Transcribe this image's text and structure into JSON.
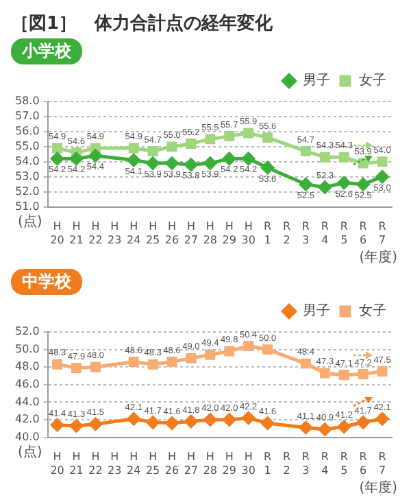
{
  "chart_data": [
    {
      "type": "line",
      "title": "［図1］　体力合計点の経年変化",
      "subtitle": "小学校",
      "xlabel": "(年度)",
      "ylabel": "(点)",
      "categories": [
        "H20",
        "H21",
        "H22",
        "H23",
        "H24",
        "H25",
        "H26",
        "H27",
        "H28",
        "H29",
        "H30",
        "R1",
        "R2",
        "R3",
        "R4",
        "R5",
        "R6",
        "R7"
      ],
      "series": [
        {
          "name": "男子",
          "color": "#3cae3a",
          "marker": "diamond",
          "values": [
            54.2,
            54.2,
            54.4,
            null,
            54.1,
            53.9,
            53.9,
            53.8,
            53.9,
            54.2,
            54.2,
            53.6,
            null,
            52.5,
            52.3,
            52.6,
            52.5,
            53.0
          ],
          "value_labels": [
            "54.2",
            "54.2",
            "54.4",
            null,
            "54.1",
            "53.9",
            "53.9",
            "53.8",
            "53.9",
            "54.2",
            "54.2",
            "53.6",
            null,
            "52.5",
            "52.3",
            "52.6",
            "52.5",
            "53.0"
          ]
        },
        {
          "name": "女子",
          "color": "#9fd67e",
          "marker": "square",
          "values": [
            54.9,
            54.6,
            54.9,
            null,
            54.9,
            54.7,
            55.0,
            55.2,
            55.5,
            55.7,
            55.9,
            55.6,
            null,
            54.7,
            54.3,
            54.3,
            53.9,
            54.0
          ],
          "value_labels": [
            "54.9",
            "54.6",
            "54.9",
            null,
            "54.9",
            "54.7",
            "55.0",
            "55.2",
            "55.5",
            "55.7",
            "55.9",
            "55.6",
            null,
            "54.7",
            "54.3",
            "54.3",
            "53.9",
            "54.0"
          ]
        }
      ],
      "ylim": [
        51,
        58
      ],
      "yticks": [
        {
          "value": 51,
          "label": "51.0"
        },
        {
          "value": 52,
          "label": "52.0"
        },
        {
          "value": 53,
          "label": "53.0"
        },
        {
          "value": 54,
          "label": "54.0"
        },
        {
          "value": 55,
          "label": "55.0"
        },
        {
          "value": 56,
          "label": "56.0"
        },
        {
          "value": 57,
          "label": "57.0"
        },
        {
          "value": 58,
          "label": "58.0"
        }
      ],
      "grid": "y",
      "legend": "top right"
    },
    {
      "type": "line",
      "subtitle": "中学校",
      "xlabel": "(年度)",
      "ylabel": "(点)",
      "categories": [
        "H20",
        "H21",
        "H22",
        "H23",
        "H24",
        "H25",
        "H26",
        "H27",
        "H28",
        "H29",
        "H30",
        "R1",
        "R2",
        "R3",
        "R4",
        "R5",
        "R6",
        "R7"
      ],
      "series": [
        {
          "name": "男子",
          "color": "#f07c1e",
          "marker": "diamond",
          "values": [
            41.4,
            41.3,
            41.5,
            null,
            42.1,
            41.7,
            41.6,
            41.8,
            42.0,
            42.0,
            42.2,
            41.6,
            null,
            41.1,
            40.9,
            41.2,
            41.7,
            42.1
          ],
          "value_labels": [
            "41.4",
            "41.3",
            "41.5",
            null,
            "42.1",
            "41.7",
            "41.6",
            "41.8",
            "42.0",
            "42.0",
            "42.2",
            "41.6",
            null,
            "41.1",
            "40.9",
            "41.2",
            "41.7",
            "42.1"
          ]
        },
        {
          "name": "女子",
          "color": "#f8ab72",
          "marker": "square",
          "values": [
            48.3,
            47.9,
            48.0,
            null,
            48.6,
            48.3,
            48.6,
            49.0,
            49.4,
            49.8,
            50.4,
            50.0,
            null,
            48.4,
            47.3,
            47.1,
            47.2,
            47.5
          ],
          "value_labels": [
            "48.3",
            "47.9",
            "48.0",
            null,
            "48.6",
            "48.3",
            "48.6",
            "49.0",
            "49.4",
            "49.8",
            "50.4",
            "50.0",
            null,
            "48.4",
            "47.3",
            "47.1",
            "47.2",
            "47.5"
          ]
        }
      ],
      "ylim": [
        40,
        52
      ],
      "yticks": [
        {
          "value": 40,
          "label": "40.0"
        },
        {
          "value": 42,
          "label": "42.0"
        },
        {
          "value": 44,
          "label": "44.0"
        },
        {
          "value": 46,
          "label": "46.0"
        },
        {
          "value": 48,
          "label": "48.0"
        },
        {
          "value": 50,
          "label": "50.0"
        },
        {
          "value": 52,
          "label": "52.0"
        }
      ],
      "grid": "y",
      "legend": "top right"
    }
  ]
}
